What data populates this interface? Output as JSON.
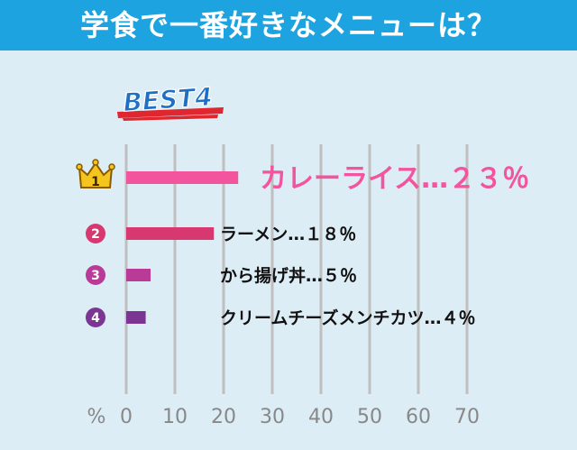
{
  "header": {
    "title": "学食で一番好きなメニューは？"
  },
  "badge": {
    "text": "BEST4"
  },
  "colors": {
    "header": "#1da3df",
    "background": "#dcedf6",
    "grid": "#bfbfbf",
    "rank1": "#f2549d",
    "rank2": "#d83870",
    "rank3": "#b93a97",
    "rank4": "#7b3592"
  },
  "chart_data": {
    "type": "bar",
    "orientation": "horizontal",
    "title": "学食で一番好きなメニューは？",
    "unit_label": "%",
    "xlim": [
      0,
      70
    ],
    "x_ticks": [
      "0",
      "10",
      "20",
      "30",
      "40",
      "50",
      "60",
      "70"
    ],
    "grid": true,
    "categories": [
      "カレーライス",
      "ラーメン",
      "から揚げ丼",
      "クリームチーズメンチカツ"
    ],
    "values": [
      23,
      18,
      5,
      4
    ],
    "ranks": [
      "1",
      "2",
      "3",
      "4"
    ],
    "labels": [
      "カレーライス…２３％",
      "ラーメン…１８％",
      "から揚げ丼…５％",
      "クリームチーズメンチカツ…４％"
    ]
  }
}
